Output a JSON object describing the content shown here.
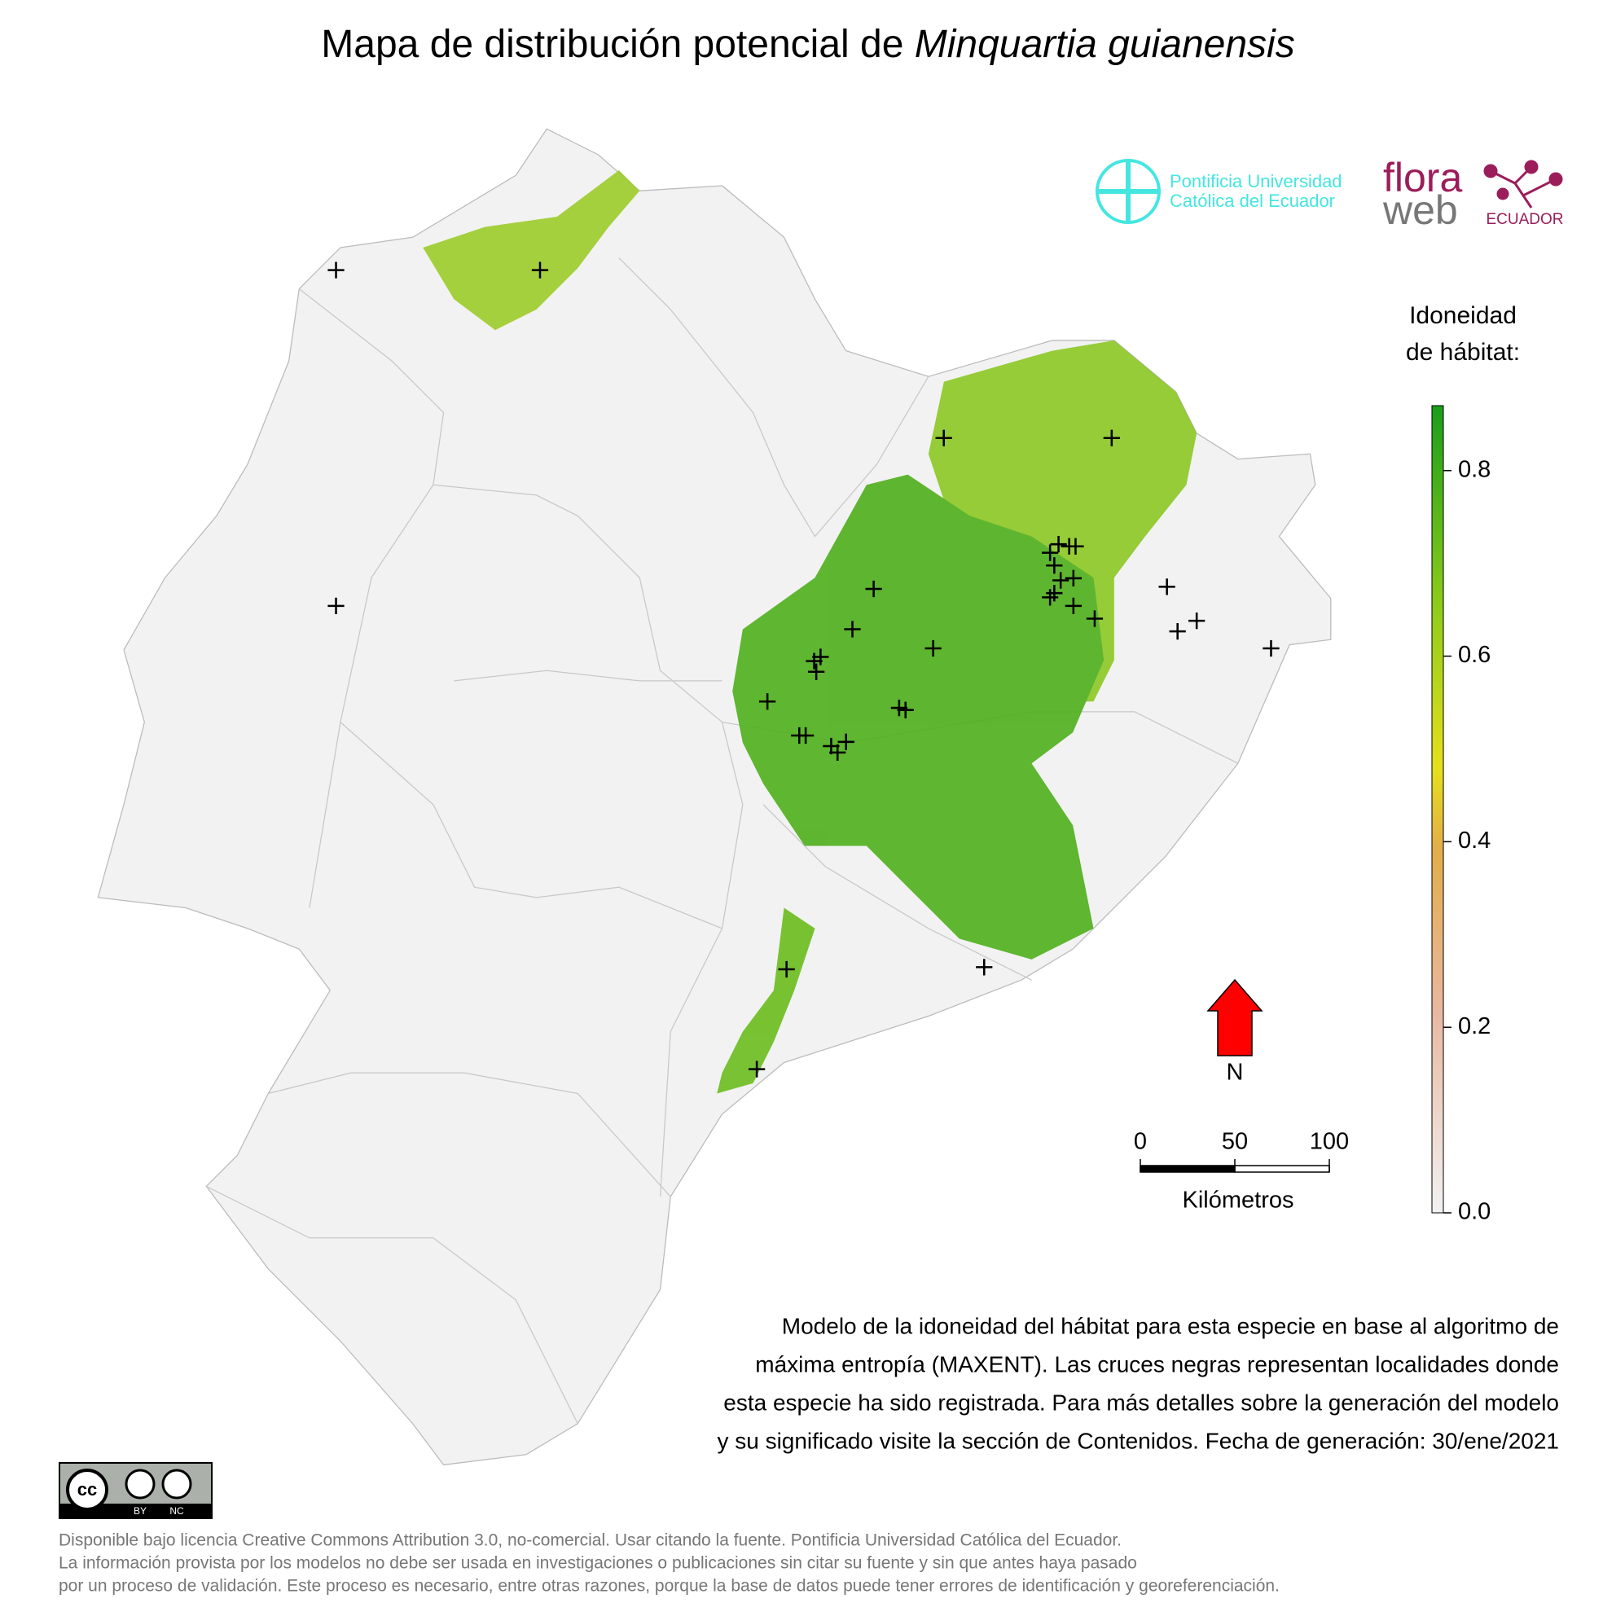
{
  "title": {
    "prefix": "Mapa de distribución potencial de",
    "species": "Minquartia guianensis"
  },
  "logos": {
    "university": [
      "Pontificia Universidad",
      "Católica del Ecuador"
    ],
    "flora": "flora",
    "web": "web",
    "country": "ECUADOR"
  },
  "legend": {
    "title": [
      "Idoneidad",
      "de hábitat:"
    ],
    "lim": [
      0,
      0.87
    ],
    "ticks": [
      {
        "value": 0,
        "label": "0.0"
      },
      0.2,
      0.4,
      0.6,
      0.8
    ]
  },
  "north": "N",
  "scale": {
    "ticks": [
      0,
      50,
      100
    ],
    "unit": "Kilómetros"
  },
  "localities": [
    [
      -79.88,
      0.81
    ],
    [
      -78.92,
      0.81
    ],
    [
      -77.02,
      0.02
    ],
    [
      -76.23,
      0.02
    ],
    [
      -79.88,
      -0.77
    ],
    [
      -77.35,
      -0.69
    ],
    [
      -76.52,
      -0.52
    ],
    [
      -76.48,
      -0.48
    ],
    [
      -76.43,
      -0.49
    ],
    [
      -76.4,
      -0.49
    ],
    [
      -76.5,
      -0.58
    ],
    [
      -76.47,
      -0.65
    ],
    [
      -76.41,
      -0.64
    ],
    [
      -76.52,
      -0.73
    ],
    [
      -76.5,
      -0.71
    ],
    [
      -76.41,
      -0.77
    ],
    [
      -76.31,
      -0.83
    ],
    [
      -75.97,
      -0.68
    ],
    [
      -75.92,
      -0.89
    ],
    [
      -75.83,
      -0.84
    ],
    [
      -75.48,
      -0.97
    ],
    [
      -77.45,
      -0.88
    ],
    [
      -77.07,
      -0.97
    ],
    [
      -77.63,
      -1.03
    ],
    [
      -77.6,
      -1.01
    ],
    [
      -77.62,
      -1.08
    ],
    [
      -77.85,
      -1.22
    ],
    [
      -77.23,
      -1.25
    ],
    [
      -77.2,
      -1.26
    ],
    [
      -77.7,
      -1.38
    ],
    [
      -77.67,
      -1.38
    ],
    [
      -77.55,
      -1.43
    ],
    [
      -77.52,
      -1.46
    ],
    [
      -77.48,
      -1.41
    ],
    [
      -77.76,
      -2.48
    ],
    [
      -76.83,
      -2.47
    ],
    [
      -77.9,
      -2.95
    ]
  ],
  "description": [
    "Modelo de la idoneidad del hábitat para esta especie en base al algoritmo de",
    "máxima entropía (MAXENT). Las cruces negras representan localidades donde",
    "esta especie ha sido registrada. Para más detalles sobre la generación del modelo",
    "y su significado visite la sección de Contenidos. Fecha de generación: 30/ene/2021"
  ],
  "license": {
    "badge": [
      "BY",
      "NC"
    ],
    "lines": [
      "Disponible bajo licencia Creative Commons Attribution 3.0, no-comercial. Usar citando la fuente. Pontificia Universidad Católica del Ecuador.",
      "La información provista por los modelos no debe ser usada en investigaciones o publicaciones sin citar su fuente y sin que antes haya pasado",
      "por un proceso de validación. Este proceso es necesario, entre otras razones, porque la base de datos puede tener errores de identificación y georeferenciación."
    ]
  }
}
